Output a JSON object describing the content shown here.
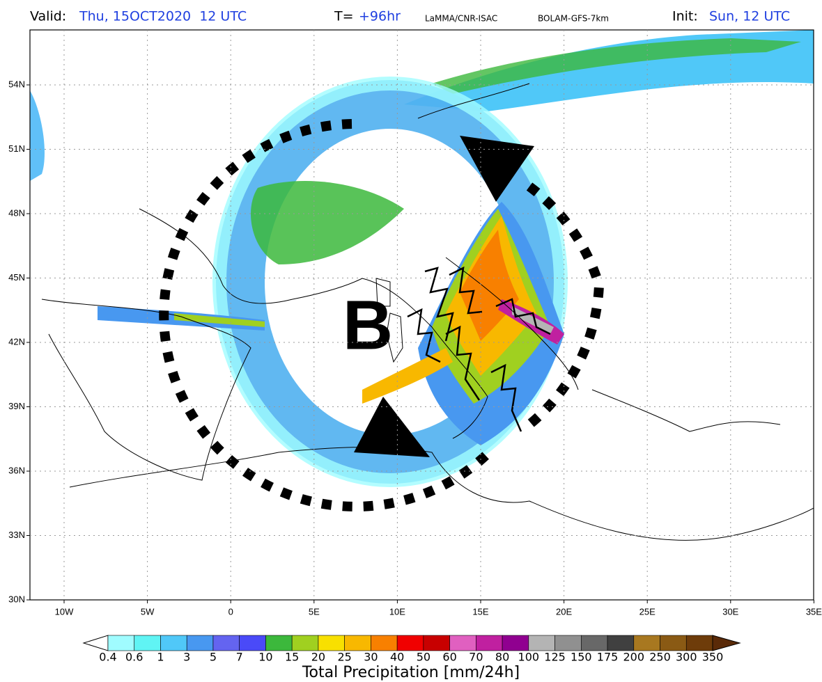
{
  "header": {
    "valid_label": "Valid:",
    "valid_time": "Thu, 15OCT2020  12 UTC",
    "lead_label": "T=",
    "lead_time": "+96hr",
    "institution": "LaMMA/CNR-ISAC",
    "model": "BOLAM-GFS-7km",
    "init_label": "Init:",
    "init_time": "Sun, 12 UTC"
  },
  "map": {
    "lat_labels": [
      "30N",
      "33N",
      "36N",
      "39N",
      "42N",
      "45N",
      "48N",
      "51N",
      "54N"
    ],
    "lon_labels": [
      "10W",
      "5W",
      "0",
      "5E",
      "10E",
      "15E",
      "20E",
      "25E",
      "30E",
      "35E"
    ],
    "annotation": "B"
  },
  "colorbar": {
    "title": "Total Precipitation [mm/24h]",
    "levels": [
      "0.4",
      "0.6",
      "1",
      "3",
      "5",
      "7",
      "10",
      "15",
      "20",
      "25",
      "30",
      "40",
      "50",
      "60",
      "70",
      "80",
      "100",
      "125",
      "150",
      "175",
      "200",
      "250",
      "300",
      "350"
    ],
    "colors": [
      "#a0fcff",
      "#60f4f4",
      "#50c8f8",
      "#4898f0",
      "#6464f0",
      "#4a4af8",
      "#3cb83c",
      "#a0d020",
      "#f8e000",
      "#f8b800",
      "#f88000",
      "#f00000",
      "#c80000",
      "#e060c0",
      "#c020a0",
      "#900090",
      "#b4b4b4",
      "#909090",
      "#686868",
      "#404040",
      "#a87820",
      "#8a5a14",
      "#6e3c0a"
    ],
    "over_color": "#5a2a08"
  }
}
